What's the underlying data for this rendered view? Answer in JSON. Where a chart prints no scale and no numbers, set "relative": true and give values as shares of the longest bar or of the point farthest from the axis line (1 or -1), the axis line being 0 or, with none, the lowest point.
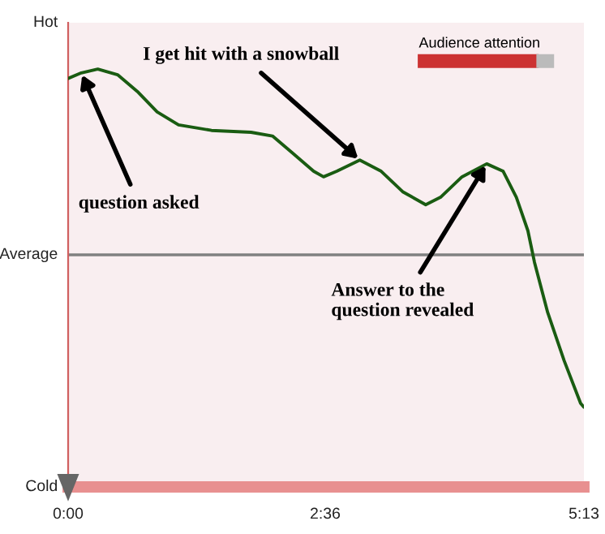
{
  "chart_data": {
    "type": "line",
    "relative": true,
    "x": [
      0,
      8,
      18,
      30,
      42,
      54,
      67,
      87,
      111,
      124,
      136,
      149,
      155,
      163,
      177,
      190,
      203,
      217,
      226,
      239,
      254,
      264,
      272,
      279,
      283,
      291,
      301,
      311,
      313
    ],
    "series": [
      {
        "color": "#1a5c12",
        "values": [
          0.95,
          0.98,
          1,
          0.97,
          0.88,
          0.77,
          0.7,
          0.67,
          0.66,
          0.64,
          0.55,
          0.45,
          0.42,
          0.45,
          0.51,
          0.45,
          0.34,
          0.27,
          0.31,
          0.42,
          0.49,
          0.45,
          0.31,
          0.13,
          -0.04,
          -0.31,
          -0.57,
          -0.8,
          -0.82
        ]
      }
    ],
    "xlim": [
      0,
      313
    ],
    "xticks": [
      {
        "value": 0,
        "label": "0:00"
      },
      {
        "value": 156,
        "label": "2:36"
      },
      {
        "value": 313,
        "label": "5:13"
      }
    ],
    "marker": "none",
    "line_style": "solid",
    "ref_lines": [
      {
        "axis": "y",
        "value": 0,
        "label": "Average",
        "color": "#808080"
      }
    ],
    "annotations": [
      {
        "text": "question asked",
        "x": 8,
        "y": 0.98
      },
      {
        "text": "I get hit with a snowball",
        "x": 177,
        "y": 0.51
      },
      {
        "text": "Answer to the\nquestion revealed",
        "x": 254,
        "y": 0.49
      },
      "Audience attention",
      "Hot",
      "Cold"
    ]
  }
}
